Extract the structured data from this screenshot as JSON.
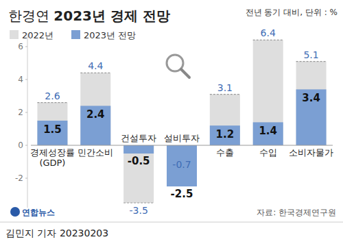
{
  "chart_data": {
    "type": "bar",
    "title": "한경연 2023년 경제 전망",
    "subtitle": "전년 동기 대비, 단위 : %",
    "categories": [
      "경제성장률\n(GDP)",
      "민간소비",
      "건설투자",
      "설비투자",
      "수출",
      "수입",
      "소비자물가"
    ],
    "series": [
      {
        "name": "2022년",
        "color": "#dedede",
        "line_style": "dashed",
        "values": [
          2.6,
          4.4,
          -3.5,
          -0.7,
          3.1,
          6.4,
          5.1
        ]
      },
      {
        "name": "2023년 전망",
        "color": "#7b9fd3",
        "values": [
          1.5,
          2.4,
          -0.5,
          -2.5,
          1.2,
          1.4,
          3.4
        ]
      }
    ],
    "ylim": [
      -3.8,
      6.8
    ],
    "yticks": [
      -2,
      0,
      2,
      4,
      6
    ],
    "grid": false,
    "stacked": false,
    "data_labels": true,
    "legend": "top-left",
    "annotations": [
      "자료: 한국경제연구원",
      "연합뉴스",
      "김민지 기자  20230203"
    ]
  }
}
